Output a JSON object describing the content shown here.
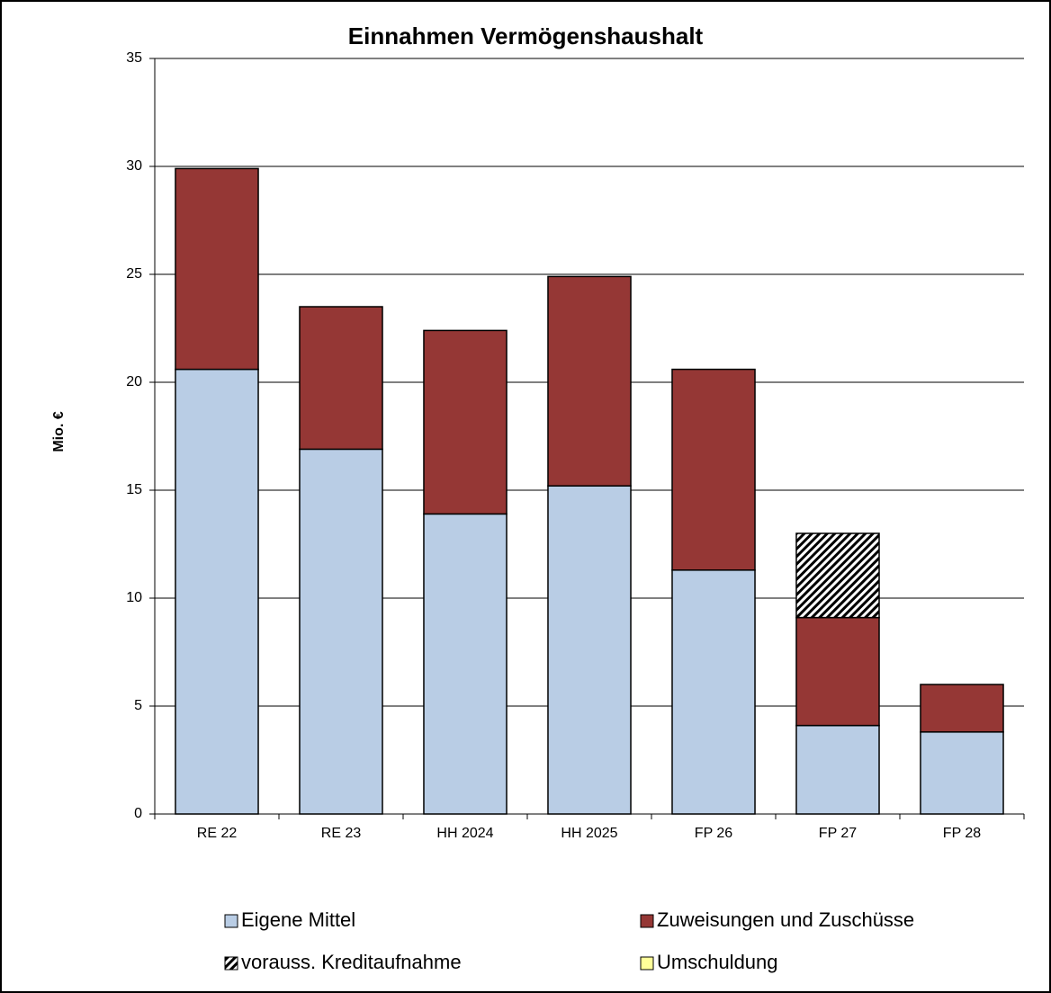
{
  "chart_data": {
    "type": "stacked_bar",
    "title": "Einnahmen Vermögenshaushalt",
    "y_label": "Mio. €",
    "categories": [
      "RE 22",
      "RE 23",
      "HH 2024",
      "HH 2025",
      "FP 26",
      "FP 27",
      "FP 28"
    ],
    "series": [
      {
        "name": "Eigene Mittel",
        "color": "#b9cde5",
        "values": [
          20.6,
          16.9,
          13.9,
          15.2,
          11.3,
          4.1,
          3.8
        ]
      },
      {
        "name": "Zuweisungen und Zuschüsse",
        "color": "#953735",
        "values": [
          9.3,
          6.6,
          8.5,
          9.7,
          9.3,
          5.0,
          2.2
        ]
      },
      {
        "name": "vorauss. Kreditaufnahme",
        "color": "#000000",
        "pattern": "hatch",
        "values": [
          0,
          0,
          0,
          0,
          0,
          3.9,
          0
        ]
      },
      {
        "name": "Umschuldung",
        "color": "#ffff99",
        "values": [
          0,
          0,
          0,
          0,
          0,
          0,
          0
        ]
      }
    ],
    "ylim": [
      0,
      35
    ],
    "yticks": [
      0,
      5,
      10,
      15,
      20,
      25,
      30,
      35
    ],
    "grid": true,
    "legend": "bottom"
  }
}
